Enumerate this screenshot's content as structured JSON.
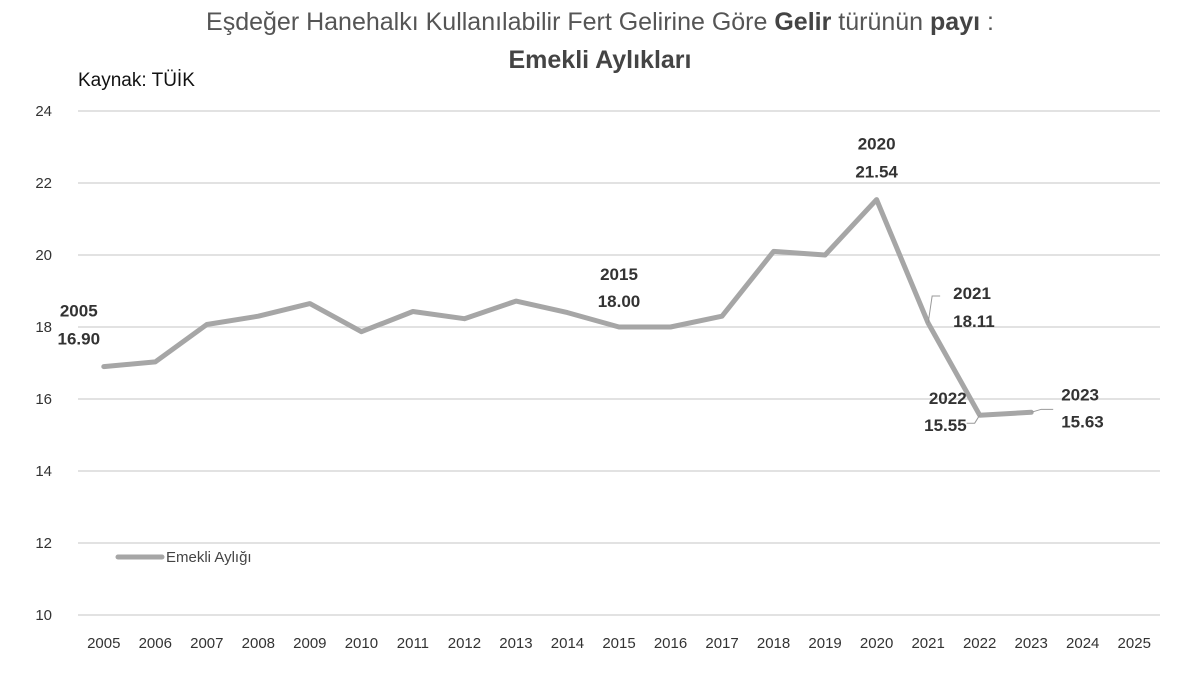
{
  "title": {
    "line1_a": "Eşdeğer Hanehalkı Kullanılabilir Fert Gelirine Göre ",
    "line1_b": "Gelir",
    "line1_c": " türünün ",
    "line1_d": "payı",
    "line1_e": " :",
    "line2": "Emekli Aylıkları"
  },
  "source": "Kaynak: TÜİK",
  "colors": {
    "line": "#a6a6a6",
    "grid": "#d9d9d9",
    "text": "#333333"
  },
  "chart_data": {
    "type": "line",
    "title": "Eşdeğer Hanehalkı Kullanılabilir Fert Gelirine Göre Gelir türünün payı : Emekli Aylıkları",
    "xlabel": "",
    "ylabel": "",
    "categories": [
      "2005",
      "2006",
      "2007",
      "2008",
      "2009",
      "2010",
      "2011",
      "2012",
      "2013",
      "2014",
      "2015",
      "2016",
      "2017",
      "2018",
      "2019",
      "2020",
      "2021",
      "2022",
      "2023",
      "2024",
      "2025"
    ],
    "ylim": [
      10,
      24
    ],
    "yticks": [
      "10",
      "12",
      "14",
      "16",
      "18",
      "20",
      "22",
      "24"
    ],
    "grid": true,
    "legend_position": "bottom-left",
    "series": [
      {
        "name": "Emekli Aylığı",
        "values": [
          16.9,
          17.03,
          18.07,
          18.3,
          18.65,
          17.87,
          18.43,
          18.23,
          18.72,
          18.4,
          18.0,
          18.0,
          18.3,
          20.1,
          20.0,
          21.54,
          18.11,
          15.55,
          15.63,
          null,
          null
        ]
      }
    ],
    "annotations": [
      {
        "year": "2005",
        "value": "16.90"
      },
      {
        "year": "2015",
        "value": "18.00"
      },
      {
        "year": "2020",
        "value": "21.54"
      },
      {
        "year": "2021",
        "value": "18.11"
      },
      {
        "year": "2022",
        "value": "15.55"
      },
      {
        "year": "2023",
        "value": "15.63"
      }
    ]
  }
}
